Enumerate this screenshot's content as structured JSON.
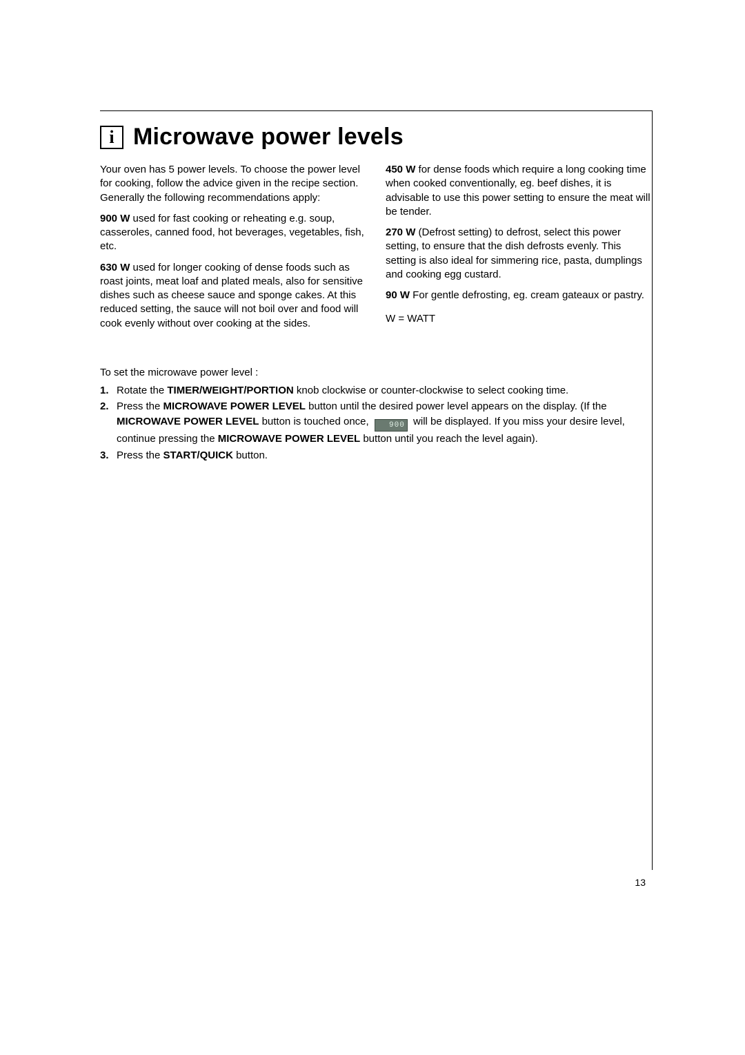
{
  "title": "Microwave power levels",
  "intro": "Your oven has 5 power levels. To choose the power level for cooking, follow the advice given in the recipe section. Generally the following recommendations apply:",
  "levels": {
    "p900": {
      "label": "900 W",
      "text": " used for fast cooking or reheating e.g. soup, casseroles, canned food, hot beverages, vegetables, fish, etc."
    },
    "p630": {
      "label": "630 W",
      "text": " used for longer cooking of dense foods such as roast joints, meat loaf and plated meals, also for sensitive dishes such as cheese sauce and sponge cakes. At this reduced setting, the sauce will not boil over and food will cook evenly without over cooking at the sides."
    },
    "p450": {
      "label": "450 W",
      "text": " for dense foods which require a long cooking time when cooked conventionally, eg. beef dishes, it is advisable to use this power setting to ensure the meat will be tender."
    },
    "p270": {
      "label": "270 W",
      "text": " (Defrost setting) to defrost, select this power setting, to ensure that the dish defrosts evenly. This setting is also ideal for simmering rice, pasta, dumplings and cooking egg custard."
    },
    "p90": {
      "label": "90 W",
      "text": " For gentle defrosting, eg. cream gateaux or pastry."
    }
  },
  "watt_note": "W = WATT",
  "instructions": {
    "intro": "To set the microwave power level :",
    "steps": {
      "s1": {
        "num": "1.",
        "pre": "Rotate the ",
        "bold1": "TIMER/WEIGHT/PORTION",
        "post": " knob clockwise or counter-clockwise to select cooking time."
      },
      "s2": {
        "num": "2.",
        "pre": "Press the ",
        "bold1": "MICROWAVE POWER LEVEL",
        "mid1": " button until the desired power level appears on the display. (If the ",
        "bold2": "MICROWAVE POWER LEVEL",
        "mid2": " button is touched once, ",
        "chip": "900",
        "mid3": " will be displayed.  If you miss your desire level, continue pressing the ",
        "bold3": "MICROWAVE POWER LEVEL",
        "post": " button until you reach the level again)."
      },
      "s3": {
        "num": "3.",
        "pre": "Press the ",
        "bold1": "START/QUICK",
        "post": " button."
      }
    }
  },
  "page_number": "13",
  "colors": {
    "text": "#000000",
    "chip_bg": "#6a7a70",
    "chip_border": "#3d4a42",
    "chip_text": "#dfeee4"
  }
}
